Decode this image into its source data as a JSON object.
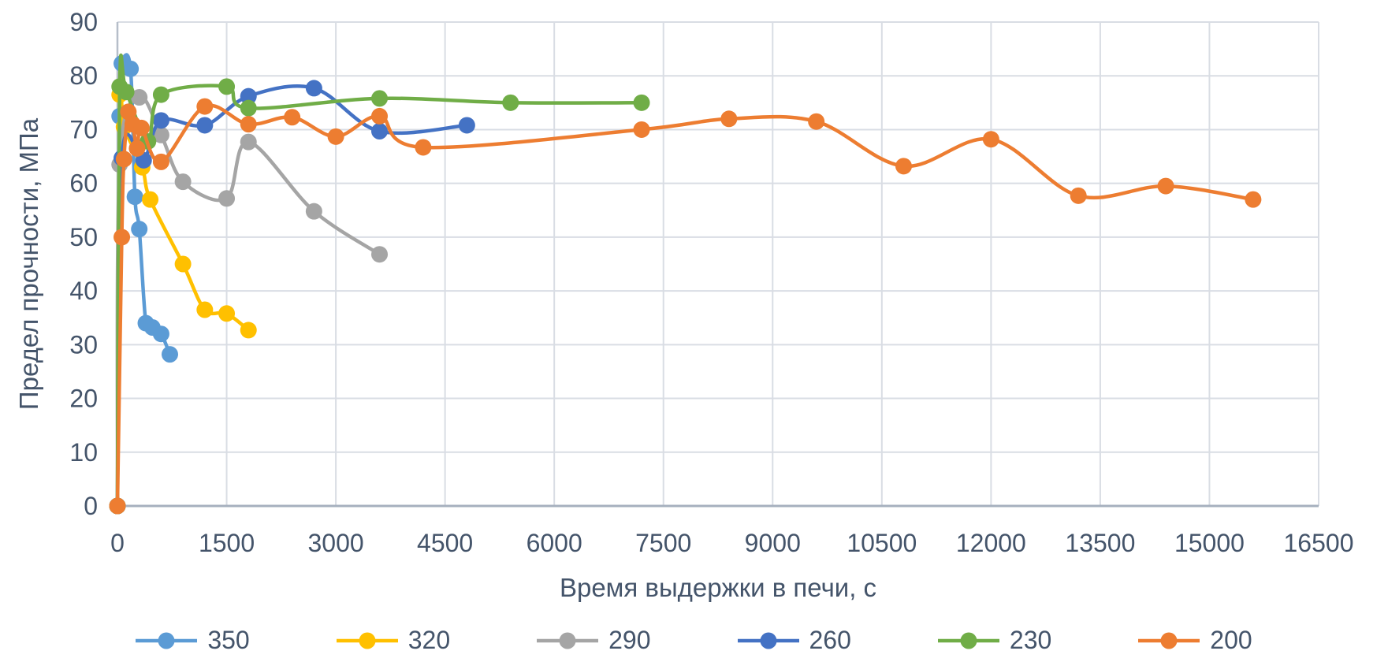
{
  "chart_data": {
    "type": "line",
    "title": "",
    "xlabel": "Время выдержки в печи, с",
    "ylabel": "Предел прочности, МПа",
    "xlim": [
      0,
      16500
    ],
    "xstep": 1500,
    "ylim": [
      0,
      90
    ],
    "ystep": 10,
    "grid": true,
    "smoothed_lines": true,
    "legend_position": "bottom",
    "x_ticks": [
      0,
      1500,
      3000,
      4500,
      6000,
      7500,
      9000,
      10500,
      12000,
      13500,
      15000,
      16500
    ],
    "y_ticks": [
      0,
      10,
      20,
      30,
      40,
      50,
      60,
      70,
      80,
      90
    ],
    "series": [
      {
        "name": "350",
        "color": "#5B9BD5",
        "points": [
          [
            0,
            0
          ],
          [
            30,
            72.5
          ],
          [
            60,
            82.3
          ],
          [
            180,
            81.3
          ],
          [
            240,
            57.5
          ],
          [
            300,
            51.5
          ],
          [
            390,
            34
          ],
          [
            480,
            33.2
          ],
          [
            600,
            32
          ],
          [
            720,
            28.2
          ]
        ]
      },
      {
        "name": "320",
        "color": "#FFC000",
        "points": [
          [
            0,
            0
          ],
          [
            30,
            76.5
          ],
          [
            90,
            70.5
          ],
          [
            340,
            63
          ],
          [
            450,
            57
          ],
          [
            900,
            45
          ],
          [
            1200,
            36.5
          ],
          [
            1500,
            35.8
          ],
          [
            1800,
            32.7
          ]
        ]
      },
      {
        "name": "290",
        "color": "#A5A5A5",
        "points": [
          [
            0,
            0
          ],
          [
            30,
            63.5
          ],
          [
            300,
            76
          ],
          [
            600,
            69
          ],
          [
            900,
            60.3
          ],
          [
            1500,
            57.2
          ],
          [
            1800,
            67.7
          ],
          [
            2700,
            54.8
          ],
          [
            3600,
            46.8
          ]
        ]
      },
      {
        "name": "260",
        "color": "#4472C4",
        "points": [
          [
            0,
            0
          ],
          [
            60,
            64.7
          ],
          [
            360,
            64.3
          ],
          [
            600,
            71.7
          ],
          [
            1200,
            70.8
          ],
          [
            1800,
            76.2
          ],
          [
            2700,
            77.7
          ],
          [
            3600,
            69.7
          ],
          [
            4800,
            70.8
          ]
        ]
      },
      {
        "name": "230",
        "color": "#70AD47",
        "points": [
          [
            0,
            0
          ],
          [
            30,
            78
          ],
          [
            120,
            77
          ],
          [
            420,
            67.8
          ],
          [
            600,
            76.5
          ],
          [
            1500,
            78
          ],
          [
            1800,
            74
          ],
          [
            3600,
            75.8
          ],
          [
            5400,
            75
          ],
          [
            7200,
            75
          ]
        ]
      },
      {
        "name": "200",
        "color": "#ED7D31",
        "points": [
          [
            0,
            0
          ],
          [
            60,
            50
          ],
          [
            90,
            64.5
          ],
          [
            150,
            73.3
          ],
          [
            210,
            71
          ],
          [
            270,
            66.5
          ],
          [
            330,
            70.3
          ],
          [
            600,
            64
          ],
          [
            1200,
            74.3
          ],
          [
            1800,
            71
          ],
          [
            2400,
            72.3
          ],
          [
            3000,
            68.7
          ],
          [
            3600,
            72.5
          ],
          [
            4200,
            66.7
          ],
          [
            7200,
            70
          ],
          [
            8400,
            72
          ],
          [
            9600,
            71.5
          ],
          [
            10800,
            63.2
          ],
          [
            12000,
            68.2
          ],
          [
            13200,
            57.7
          ],
          [
            14400,
            59.5
          ],
          [
            15600,
            57
          ]
        ]
      }
    ]
  },
  "styles": {
    "background": "#FFFFFF",
    "text_color": "#44546A",
    "gridline_color": "#D9DDE4",
    "x_axis_color": "#A6B0BE",
    "y_axis_color": "#B6BEC9",
    "marker_radius": 10.5,
    "line_width": 4.5
  }
}
